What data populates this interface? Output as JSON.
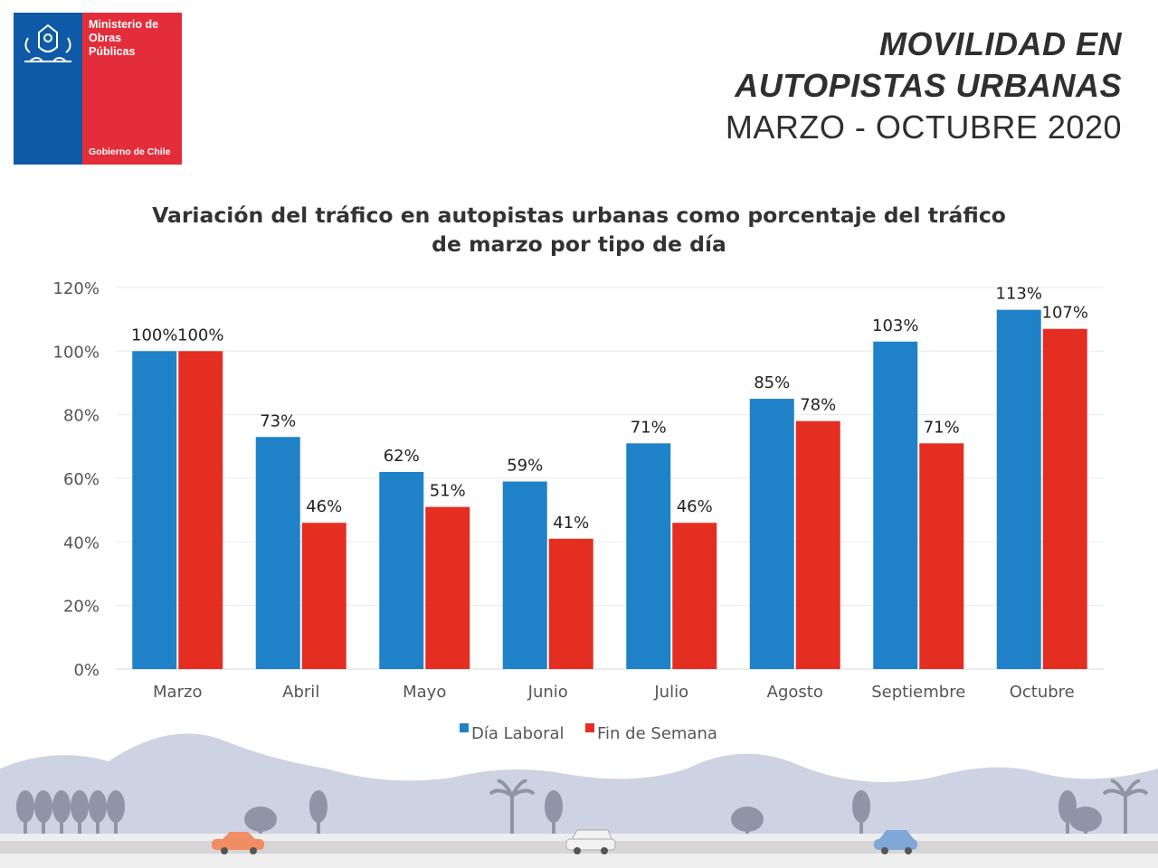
{
  "logo": {
    "ministry_lines": [
      "Ministerio de",
      "Obras",
      "Públicas"
    ],
    "government": "Gobierno de Chile"
  },
  "header": {
    "line1": "MOVILIDAD EN",
    "line2": "AUTOPISTAS URBANAS",
    "line3": "MARZO - OCTUBRE 2020"
  },
  "colors": {
    "series1": "#1f82c8",
    "series2": "#e52e22",
    "grid": "#e9e9e9",
    "axis_text": "#555555",
    "landscape": "#cdd3e2",
    "tree": "#8d95a6",
    "road": "#d6d6d6"
  },
  "chart_data": {
    "type": "bar",
    "title": "Variación del tráfico en autopistas urbanas como porcentaje del tráfico de marzo por tipo de día",
    "title_lines": [
      "Variación del tráfico en autopistas urbanas como porcentaje del tráfico",
      "de marzo por tipo de día"
    ],
    "categories": [
      "Marzo",
      "Abril",
      "Mayo",
      "Junio",
      "Julio",
      "Agosto",
      "Septiembre",
      "Octubre"
    ],
    "series": [
      {
        "name": "Día Laboral",
        "values": [
          100,
          73,
          62,
          59,
          71,
          85,
          103,
          113
        ],
        "labels": [
          "100%",
          "73%",
          "62%",
          "59%",
          "71%",
          "85%",
          "103%",
          "113%"
        ]
      },
      {
        "name": "Fin de Semana",
        "values": [
          100,
          46,
          51,
          41,
          46,
          78,
          71,
          107
        ],
        "labels": [
          "100%",
          "46%",
          "51%",
          "41%",
          "46%",
          "78%",
          "71%",
          "107%"
        ]
      }
    ],
    "ylim": [
      0,
      120
    ],
    "yticks": [
      0,
      20,
      40,
      60,
      80,
      100,
      120
    ],
    "ytick_labels": [
      "0%",
      "20%",
      "40%",
      "60%",
      "80%",
      "100%",
      "120%"
    ],
    "xlabel": "",
    "ylabel": "",
    "grid": true,
    "legend_position": "bottom"
  }
}
